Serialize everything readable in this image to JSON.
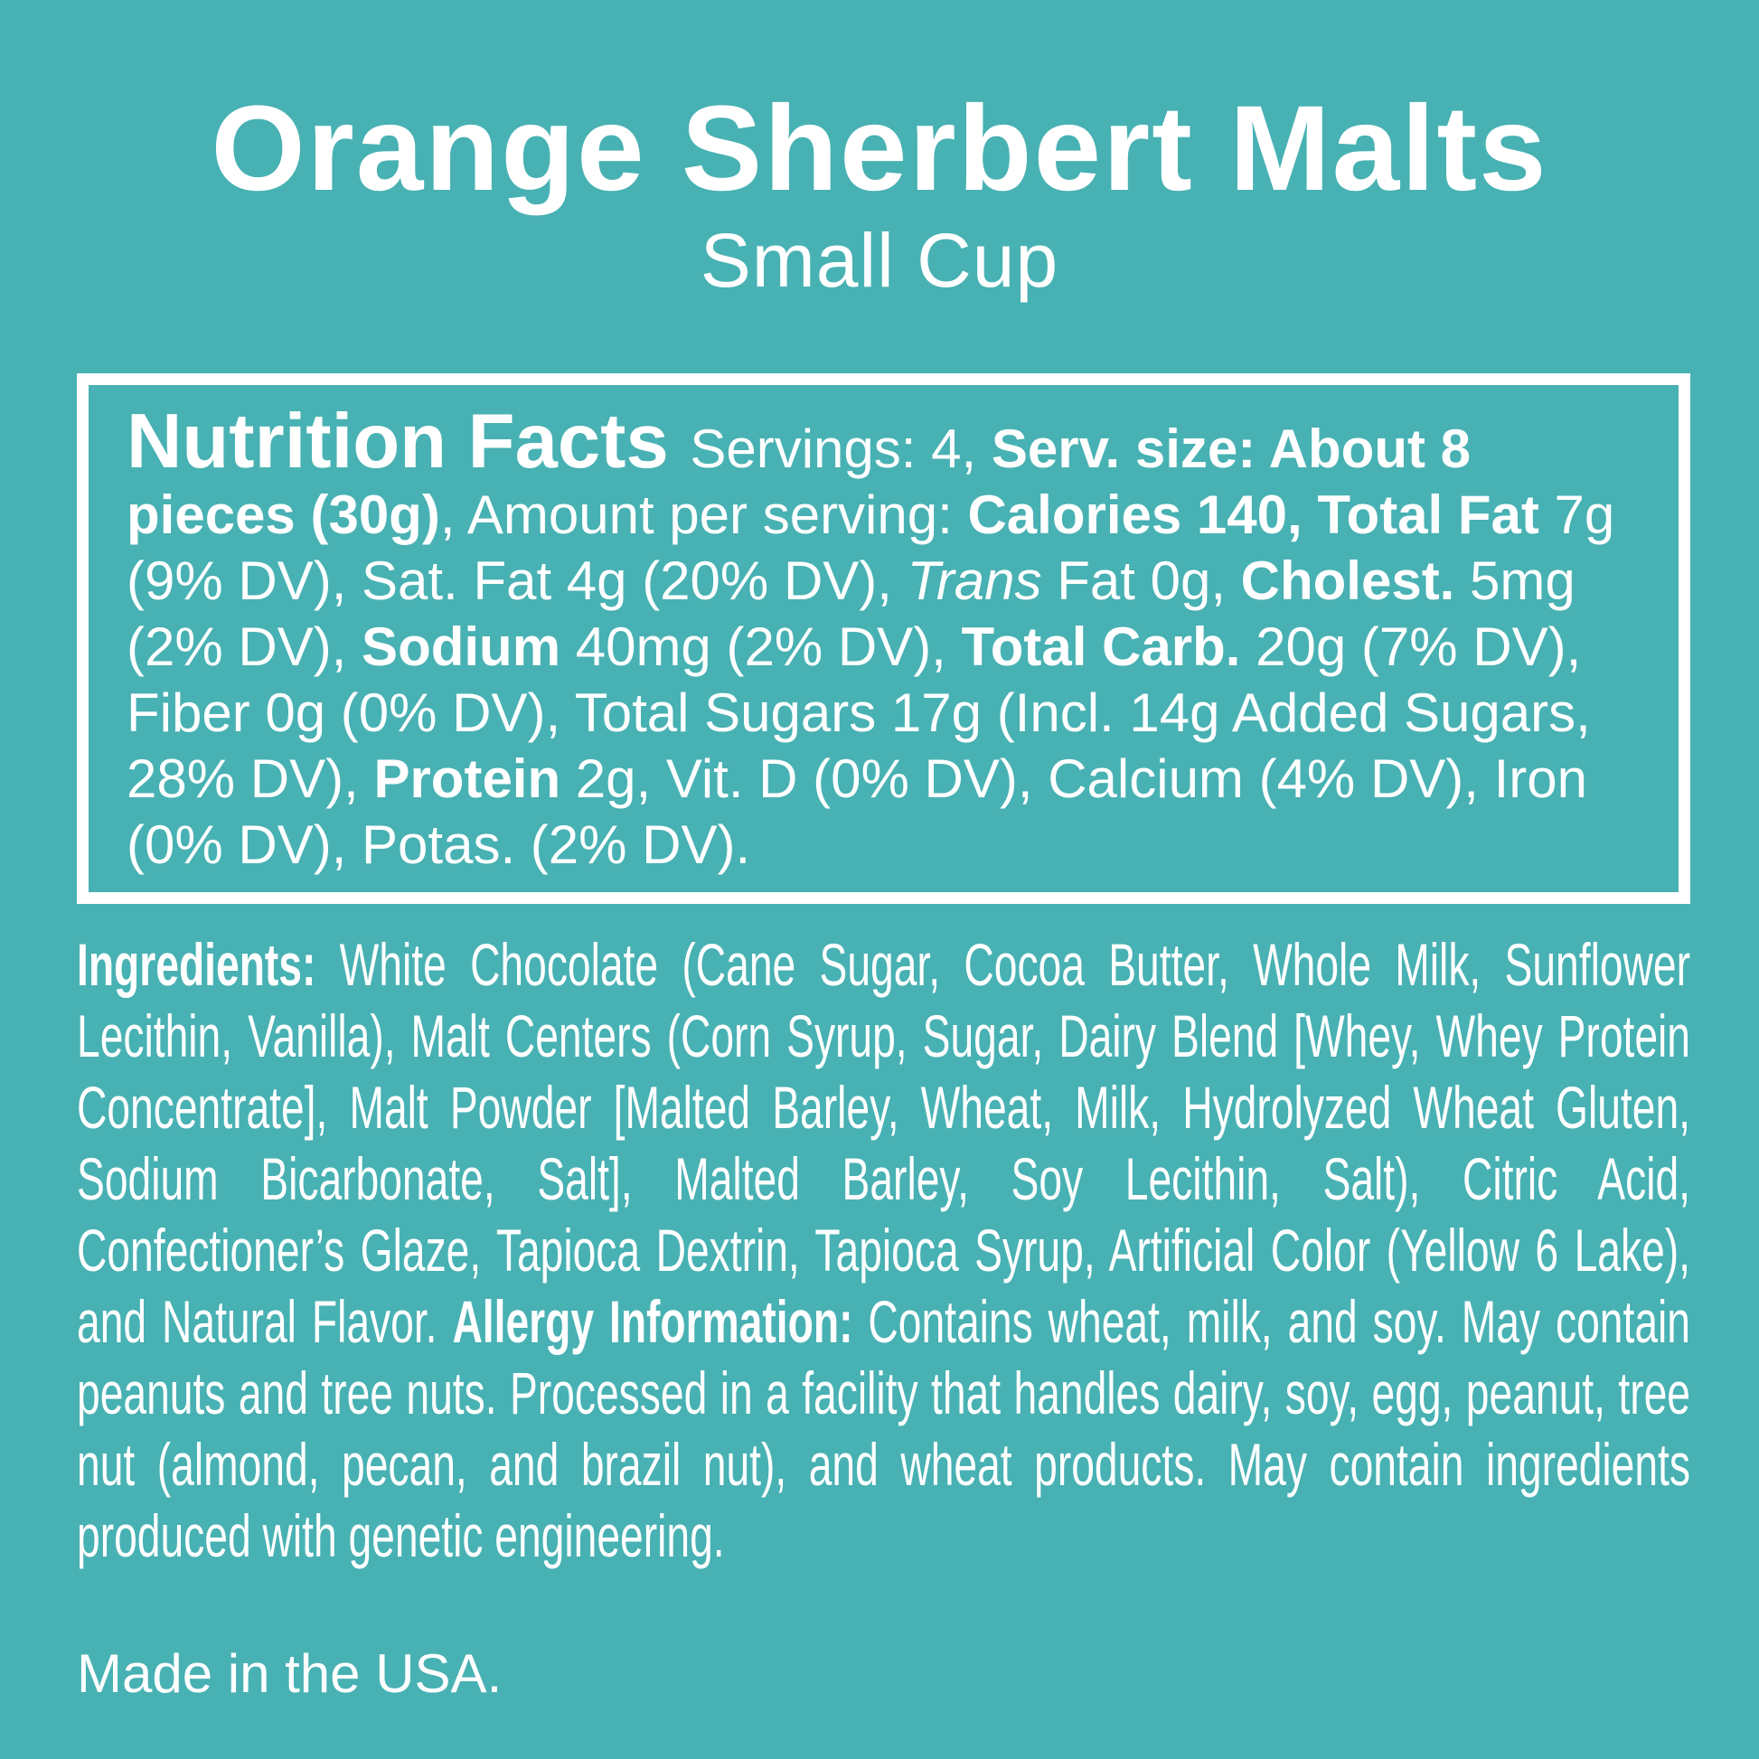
{
  "colors": {
    "background": "#48B1B3",
    "text": "#FFFFFF"
  },
  "header": {
    "title": "Orange Sherbert Malts",
    "subtitle": "Small Cup"
  },
  "nutrition_facts": {
    "heading": "Nutrition Facts",
    "servings": "4",
    "serving_size": "About 8 pieces (30g)",
    "calories": "140",
    "segments": [
      {
        "text": "Nutrition Facts ",
        "bold": true,
        "large": true,
        "name": "nutrition-facts-heading"
      },
      {
        "text": "Servings: 4, ",
        "bold": false
      },
      {
        "text": "Serv. size: About 8 pieces (30g)",
        "bold": true
      },
      {
        "text": ", Amount per serving: ",
        "bold": false
      },
      {
        "text": "Calories 140, Total Fat",
        "bold": true
      },
      {
        "text": " 7g (9% DV), Sat. Fat 4g (20% DV), ",
        "bold": false
      },
      {
        "text": "Trans",
        "bold": false,
        "italic": true
      },
      {
        "text": " Fat 0g, ",
        "bold": false
      },
      {
        "text": "Cholest.",
        "bold": true
      },
      {
        "text": " 5mg (2% DV), ",
        "bold": false
      },
      {
        "text": "Sodium",
        "bold": true
      },
      {
        "text": " 40mg (2% DV), ",
        "bold": false
      },
      {
        "text": "Total Carb.",
        "bold": true
      },
      {
        "text": " 20g (7% DV), Fiber 0g (0% DV), Total Sugars 17g (Incl. 14g Added Sugars, 28% DV), ",
        "bold": false
      },
      {
        "text": "Protein",
        "bold": true
      },
      {
        "text": " 2g, Vit. D (0% DV), Calcium (4% DV), Iron (0% DV), Potas. (2% DV).",
        "bold": false
      }
    ]
  },
  "ingredients": {
    "segments": [
      {
        "text": "Ingredients: ",
        "bold": true,
        "name": "ingredients-heading"
      },
      {
        "text": "White Chocolate (Cane Sugar, Cocoa Butter, Whole Milk, Sunflower Lecithin, Vanilla), Malt Centers (Corn Syrup, Sugar, Dairy Blend [Whey, Whey Protein Concentrate], Malt Powder [Malted Barley, Wheat, Milk, Hydrolyzed Wheat Gluten, Sodium Bicarbonate, Salt], Malted Barley, Soy Lecithin, Salt), Citric Acid, Confectioner’s Glaze, Tapioca Dextrin, Tapioca Syrup, Artificial Color (Yellow 6 Lake), and Natural Flavor. ",
        "bold": false
      },
      {
        "text": "Allergy Information: ",
        "bold": true,
        "name": "allergy-information-heading"
      },
      {
        "text": "Contains wheat, milk, and soy. May contain peanuts and tree nuts. Processed in a facility that handles dairy, soy, egg, peanut, tree nut (almond, pecan, and brazil nut), and wheat products. May contain ingredients produced with genetic engineering.",
        "bold": false
      }
    ]
  },
  "footer": {
    "made_in": "Made in the USA."
  }
}
